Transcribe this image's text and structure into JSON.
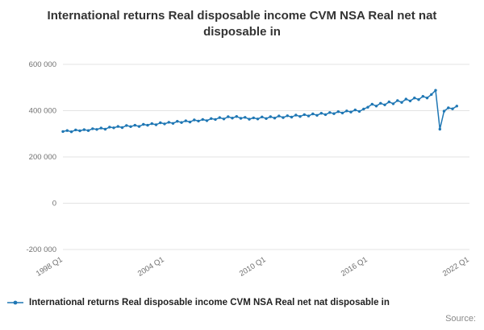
{
  "title": "International returns Real disposable income CVM NSA Real net nat disposable in",
  "legend": {
    "label": "International returns Real disposable income CVM NSA Real net nat disposable in"
  },
  "source_label": "Source:",
  "colors": {
    "line": "#1f77b4",
    "grid": "#e3e3e3",
    "axis_text": "#707070"
  },
  "chart_data": {
    "type": "line",
    "title": "International returns Real disposable income CVM NSA Real net nat disposable in",
    "xlabel": "",
    "ylabel": "",
    "start_year": 1998,
    "start_quarter": 1,
    "ylim": [
      -200000,
      600000
    ],
    "y_ticks": [
      {
        "value": -200000,
        "label": "-200 000"
      },
      {
        "value": 0,
        "label": "0"
      },
      {
        "value": 200000,
        "label": "200 000"
      },
      {
        "value": 400000,
        "label": "400 000"
      },
      {
        "value": 600000,
        "label": "600 000"
      }
    ],
    "x_ticks": [
      {
        "index": 0,
        "label": "1998 Q1"
      },
      {
        "index": 24,
        "label": "2004 Q1"
      },
      {
        "index": 48,
        "label": "2010 Q1"
      },
      {
        "index": 72,
        "label": "2016 Q1"
      },
      {
        "index": 96,
        "label": "2022 Q1"
      }
    ],
    "x_axis_quarters": 97,
    "legend_position": "bottom-left",
    "grid": "horizontal",
    "values": [
      310000,
      314000,
      309000,
      317000,
      313000,
      318000,
      314000,
      322000,
      319000,
      325000,
      320000,
      329000,
      326000,
      332000,
      327000,
      336000,
      331000,
      337000,
      332000,
      341000,
      337000,
      344000,
      339000,
      348000,
      343000,
      350000,
      345000,
      354000,
      349000,
      356000,
      351000,
      360000,
      355000,
      362000,
      357000,
      366000,
      362000,
      370000,
      364000,
      374000,
      368000,
      375000,
      367000,
      371000,
      363000,
      369000,
      364000,
      373000,
      366000,
      374000,
      368000,
      377000,
      370000,
      378000,
      372000,
      381000,
      375000,
      383000,
      377000,
      386000,
      380000,
      389000,
      383000,
      392000,
      387000,
      396000,
      390000,
      399000,
      394000,
      403000,
      397000,
      407000,
      415000,
      428000,
      420000,
      432000,
      425000,
      438000,
      430000,
      444000,
      436000,
      450000,
      442000,
      455000,
      448000,
      462000,
      455000,
      470000,
      488000,
      320000,
      398000,
      412000,
      408000,
      420000
    ]
  }
}
